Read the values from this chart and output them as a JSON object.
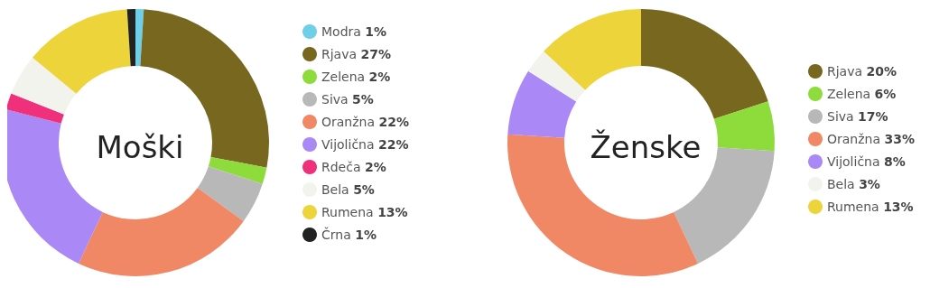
{
  "chart_data": [
    {
      "type": "donut",
      "title": "Moški",
      "categories": [
        "Modra",
        "Rjava",
        "Zelena",
        "Siva",
        "Oranžna",
        "Vijolična",
        "Rdeča",
        "Bela",
        "Rumena",
        "Črna"
      ],
      "values": [
        1,
        27,
        2,
        5,
        22,
        22,
        2,
        5,
        13,
        1
      ],
      "value_labels": [
        "1%",
        "27%",
        "2%",
        "5%",
        "22%",
        "22%",
        "2%",
        "5%",
        "13%",
        "1%"
      ],
      "colors": [
        "#6ecfe8",
        "#78671f",
        "#8ddc3c",
        "#b8b8b8",
        "#f08866",
        "#aa88f5",
        "#f0307a",
        "#f3f3ee",
        "#ecd43a",
        "#222222"
      ],
      "legend": "right"
    },
    {
      "type": "donut",
      "title": "Ženske",
      "categories": [
        "Rjava",
        "Zelena",
        "Siva",
        "Oranžna",
        "Vijolična",
        "Bela",
        "Rumena"
      ],
      "values": [
        20,
        6,
        17,
        33,
        8,
        3,
        13
      ],
      "value_labels": [
        "20%",
        "6%",
        "17%",
        "33%",
        "8%",
        "3%",
        "13%"
      ],
      "colors": [
        "#78671f",
        "#8ddc3c",
        "#b8b8b8",
        "#f08866",
        "#aa88f5",
        "#f3f3ee",
        "#ecd43a"
      ],
      "legend": "right"
    }
  ]
}
